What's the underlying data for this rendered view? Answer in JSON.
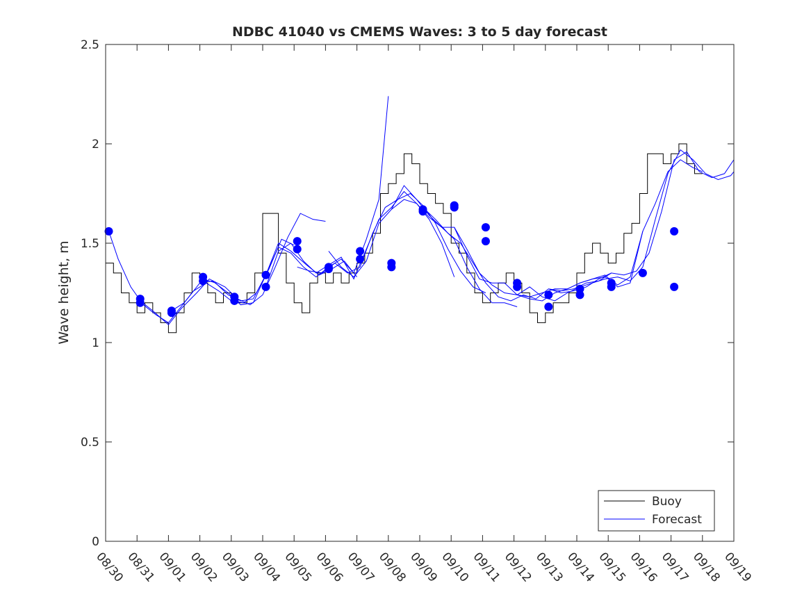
{
  "chart_data": {
    "type": "line",
    "title": "NDBC 41040 vs CMEMS Waves: 3 to 5 day forecast",
    "xlabel": "",
    "ylabel": "Wave height, m",
    "xlim": [
      0,
      20
    ],
    "ylim": [
      0,
      2.5
    ],
    "yticks": [
      0,
      0.5,
      1,
      1.5,
      2,
      2.5
    ],
    "ytick_labels": [
      "0",
      "0.5",
      "1",
      "1.5",
      "2",
      "2.5"
    ],
    "xticks": [
      0,
      1,
      2,
      3,
      4,
      5,
      6,
      7,
      8,
      9,
      10,
      11,
      12,
      13,
      14,
      15,
      16,
      17,
      18,
      19,
      20
    ],
    "xtick_labels": [
      "08/30",
      "08/31",
      "09/01",
      "09/02",
      "09/03",
      "09/04",
      "09/05",
      "09/06",
      "09/07",
      "09/08",
      "09/09",
      "09/10",
      "09/11",
      "09/12",
      "09/13",
      "09/14",
      "09/15",
      "09/16",
      "09/17",
      "09/18",
      "09/19"
    ],
    "grid": false,
    "legend": {
      "position": "bottom-right",
      "entries": [
        "Buoy",
        "Forecast"
      ]
    },
    "colors": {
      "buoy": "#000000",
      "forecast": "#0000ff",
      "axis": "#262626"
    },
    "buoy": {
      "name": "Buoy",
      "x": [
        0,
        0.25,
        0.5,
        0.75,
        1,
        1.25,
        1.5,
        1.75,
        2,
        2.25,
        2.5,
        2.75,
        3,
        3.25,
        3.5,
        3.75,
        4,
        4.25,
        4.5,
        4.75,
        5,
        5.25,
        5.5,
        5.75,
        6,
        6.25,
        6.5,
        6.75,
        7,
        7.25,
        7.5,
        7.75,
        8,
        8.25,
        8.5,
        8.75,
        9,
        9.25,
        9.5,
        9.75,
        10,
        10.25,
        10.5,
        10.75,
        11,
        11.25,
        11.5,
        11.75,
        12,
        12.25,
        12.5,
        12.75,
        13,
        13.25,
        13.5,
        13.75,
        14,
        14.25,
        14.5,
        14.75,
        15,
        15.25,
        15.5,
        15.75,
        16,
        16.25,
        16.5,
        16.75,
        17,
        17.25,
        17.5,
        17.75,
        18,
        18.25,
        18.5,
        18.75
      ],
      "y": [
        1.4,
        1.35,
        1.25,
        1.2,
        1.15,
        1.2,
        1.15,
        1.1,
        1.05,
        1.15,
        1.25,
        1.35,
        1.3,
        1.25,
        1.2,
        1.25,
        1.2,
        1.2,
        1.25,
        1.35,
        1.65,
        1.65,
        1.45,
        1.3,
        1.2,
        1.15,
        1.3,
        1.35,
        1.3,
        1.35,
        1.3,
        1.35,
        1.4,
        1.45,
        1.55,
        1.75,
        1.8,
        1.85,
        1.95,
        1.9,
        1.8,
        1.75,
        1.7,
        1.65,
        1.5,
        1.45,
        1.35,
        1.25,
        1.2,
        1.25,
        1.3,
        1.35,
        1.3,
        1.25,
        1.15,
        1.1,
        1.15,
        1.2,
        1.2,
        1.25,
        1.35,
        1.45,
        1.5,
        1.45,
        1.4,
        1.45,
        1.55,
        1.6,
        1.75,
        1.95,
        1.95,
        1.9,
        1.95,
        2.0,
        1.9,
        1.85
      ]
    },
    "forecast": {
      "name": "Forecast",
      "series": [
        {
          "x": [
            0.1,
            0.4,
            0.8,
            1.2,
            1.6,
            2.0,
            2.4,
            2.8,
            3.2,
            3.6,
            4.0,
            4.4,
            4.8,
            5.2,
            5.6,
            6.0
          ],
          "y": [
            1.56,
            1.42,
            1.28,
            1.19,
            1.14,
            1.1,
            1.18,
            1.26,
            1.3,
            1.26,
            1.21,
            1.2,
            1.25,
            1.37,
            1.52,
            1.49
          ]
        },
        {
          "x": [
            1.1,
            1.5,
            2.0,
            2.4,
            2.9,
            3.3,
            3.8,
            4.2,
            4.6,
            5.0,
            5.4,
            5.8,
            6.2,
            6.6,
            7.0
          ],
          "y": [
            1.21,
            1.16,
            1.09,
            1.17,
            1.25,
            1.32,
            1.28,
            1.22,
            1.19,
            1.24,
            1.38,
            1.53,
            1.65,
            1.62,
            1.61
          ]
        },
        {
          "x": [
            2.1,
            2.5,
            3.0,
            3.4,
            3.9,
            4.3,
            4.7,
            5.1,
            5.5,
            5.9,
            6.4,
            6.8,
            7.2,
            7.6,
            8.0
          ],
          "y": [
            1.16,
            1.2,
            1.3,
            1.31,
            1.25,
            1.19,
            1.2,
            1.34,
            1.5,
            1.46,
            1.39,
            1.34,
            1.37,
            1.41,
            1.33
          ]
        },
        {
          "x": [
            3.1,
            3.5,
            3.9,
            4.3,
            4.7,
            5.1,
            5.5,
            5.9,
            6.3,
            6.7,
            7.1,
            7.5,
            7.9,
            8.3,
            8.7,
            9.0
          ],
          "y": [
            1.32,
            1.3,
            1.24,
            1.21,
            1.22,
            1.34,
            1.48,
            1.45,
            1.38,
            1.33,
            1.38,
            1.42,
            1.35,
            1.52,
            1.72,
            2.24
          ]
        },
        {
          "x": [
            5.1,
            5.5,
            5.9,
            6.3,
            6.7,
            7.1,
            7.5,
            7.9,
            8.3,
            8.7,
            9.1,
            9.5,
            9.9,
            10.3,
            10.7,
            11.1
          ],
          "y": [
            1.28,
            1.46,
            1.5,
            1.41,
            1.35,
            1.39,
            1.43,
            1.32,
            1.47,
            1.62,
            1.68,
            1.76,
            1.7,
            1.62,
            1.5,
            1.33
          ]
        },
        {
          "x": [
            6.1,
            6.5,
            6.9,
            7.3,
            7.7,
            8.1,
            8.5,
            8.9,
            9.3,
            9.7,
            10.1,
            10.5,
            10.9,
            11.3,
            11.7,
            12.1
          ],
          "y": [
            1.38,
            1.36,
            1.35,
            1.4,
            1.35,
            1.38,
            1.55,
            1.68,
            1.72,
            1.75,
            1.69,
            1.6,
            1.47,
            1.36,
            1.28,
            1.25
          ]
        },
        {
          "x": [
            7.1,
            7.5,
            7.9,
            8.3,
            8.7,
            9.1,
            9.5,
            9.9,
            10.3,
            10.7,
            11.1,
            11.5,
            11.9,
            12.3,
            12.7,
            13.1
          ],
          "y": [
            1.46,
            1.38,
            1.33,
            1.41,
            1.6,
            1.67,
            1.79,
            1.72,
            1.64,
            1.58,
            1.52,
            1.38,
            1.27,
            1.2,
            1.2,
            1.18
          ]
        },
        {
          "x": [
            9.1,
            9.5,
            9.9,
            10.3,
            10.7,
            11.1,
            11.5,
            11.9,
            12.3,
            12.7,
            13.1,
            13.5,
            13.9,
            14.3,
            14.7,
            15.1
          ],
          "y": [
            1.67,
            1.72,
            1.7,
            1.63,
            1.58,
            1.58,
            1.44,
            1.32,
            1.3,
            1.3,
            1.24,
            1.28,
            1.23,
            1.21,
            1.25,
            1.28
          ]
        },
        {
          "x": [
            10.1,
            10.5,
            10.9,
            11.3,
            11.7,
            12.1,
            12.5,
            12.9,
            13.3,
            13.7,
            14.1,
            14.5,
            14.9,
            15.3,
            15.7,
            16.1
          ],
          "y": [
            1.68,
            1.62,
            1.55,
            1.5,
            1.4,
            1.3,
            1.23,
            1.21,
            1.24,
            1.22,
            1.27,
            1.26,
            1.27,
            1.3,
            1.31,
            1.35
          ]
        },
        {
          "x": [
            11.1,
            11.5,
            11.9,
            12.3,
            12.7,
            13.1,
            13.5,
            13.9,
            14.3,
            14.7,
            15.1,
            15.5,
            15.9,
            16.3,
            16.7,
            17.1
          ],
          "y": [
            1.58,
            1.47,
            1.35,
            1.29,
            1.25,
            1.24,
            1.22,
            1.21,
            1.25,
            1.27,
            1.3,
            1.32,
            1.33,
            1.29,
            1.33,
            1.56
          ]
        },
        {
          "x": [
            13.1,
            13.5,
            13.9,
            14.3,
            14.7,
            15.1,
            15.5,
            15.9,
            16.3,
            16.7,
            17.1,
            17.5,
            17.9,
            18.3,
            18.7,
            19.0
          ],
          "y": [
            1.24,
            1.23,
            1.25,
            1.27,
            1.27,
            1.3,
            1.32,
            1.34,
            1.28,
            1.3,
            1.56,
            1.7,
            1.86,
            1.92,
            1.88,
            1.86
          ]
        },
        {
          "x": [
            14.1,
            14.5,
            14.9,
            15.3,
            15.7,
            16.1,
            16.5,
            16.9,
            17.3,
            17.7,
            18.1,
            18.5,
            18.9,
            19.3,
            19.7,
            20.0
          ],
          "y": [
            1.27,
            1.25,
            1.26,
            1.28,
            1.32,
            1.35,
            1.34,
            1.36,
            1.45,
            1.66,
            1.92,
            1.96,
            1.86,
            1.83,
            1.85,
            1.92
          ]
        },
        {
          "x": [
            15.1,
            15.5,
            15.9,
            16.3,
            16.7,
            17.1,
            17.5,
            17.9,
            18.3,
            18.7,
            19.1,
            19.5,
            19.9,
            20.0
          ],
          "y": [
            1.28,
            1.3,
            1.32,
            1.33,
            1.31,
            1.38,
            1.62,
            1.85,
            1.97,
            1.92,
            1.85,
            1.82,
            1.84,
            1.86
          ]
        }
      ],
      "markers": {
        "x": [
          0.1,
          1.1,
          1.1,
          2.1,
          2.1,
          3.1,
          3.1,
          4.1,
          4.1,
          5.1,
          5.1,
          6.1,
          6.1,
          7.1,
          7.1,
          8.1,
          8.1,
          9.1,
          9.1,
          10.1,
          10.1,
          11.1,
          11.1,
          12.1,
          12.1,
          13.1,
          13.1,
          14.1,
          14.1,
          15.1,
          15.1,
          16.1,
          16.1,
          17.1,
          18.1,
          18.1
        ],
        "y": [
          1.56,
          1.22,
          1.2,
          1.16,
          1.15,
          1.33,
          1.31,
          1.23,
          1.21,
          1.34,
          1.28,
          1.51,
          1.47,
          1.38,
          1.37,
          1.46,
          1.42,
          1.4,
          1.38,
          1.67,
          1.66,
          1.69,
          1.68,
          1.58,
          1.51,
          1.3,
          1.28,
          1.24,
          1.18,
          1.27,
          1.24,
          1.3,
          1.28,
          1.35,
          1.28,
          1.56
        ]
      }
    }
  }
}
